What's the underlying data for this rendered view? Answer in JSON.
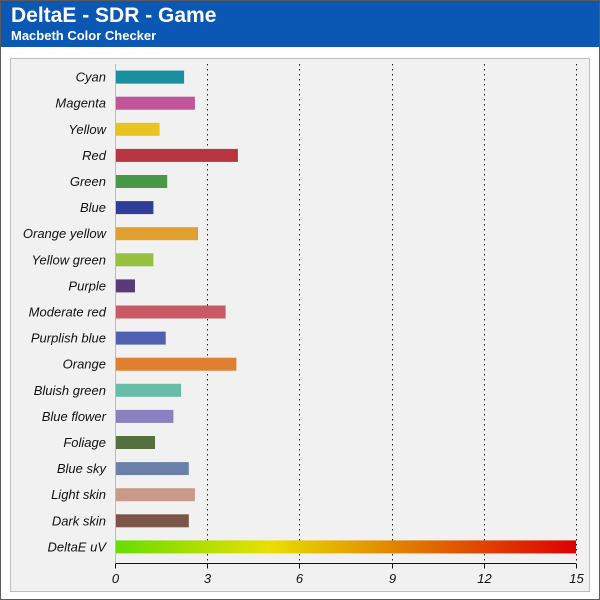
{
  "header": {
    "title": "DeltaE - SDR - Game",
    "subtitle": "Macbeth Color Checker"
  },
  "chart_data": {
    "type": "bar",
    "orientation": "horizontal",
    "title": "DeltaE - SDR - Game",
    "subtitle": "Macbeth Color Checker",
    "xlabel": "",
    "ylabel": "",
    "xlim": [
      0,
      15
    ],
    "xticks": [
      0,
      3,
      6,
      9,
      12,
      15
    ],
    "grid": "vertical-dotted",
    "categories": [
      "Cyan",
      "Magenta",
      "Yellow",
      "Red",
      "Green",
      "Blue",
      "Orange yellow",
      "Yellow green",
      "Purple",
      "Moderate red",
      "Purplish blue",
      "Orange",
      "Bluish green",
      "Blue flower",
      "Foliage",
      "Blue sky",
      "Light skin",
      "Dark skin",
      "DeltaE uV"
    ],
    "values": [
      2.25,
      2.6,
      1.45,
      4.0,
      1.7,
      1.25,
      2.7,
      1.25,
      0.65,
      3.6,
      1.65,
      3.95,
      2.15,
      1.9,
      1.3,
      2.4,
      2.6,
      2.4,
      15
    ],
    "colors": [
      "#1a8fa0",
      "#c0559a",
      "#e8c420",
      "#b83540",
      "#489848",
      "#2e3d98",
      "#e0a030",
      "#98c040",
      "#5a3a78",
      "#c85a66",
      "#5060b0",
      "#de8030",
      "#68bca8",
      "#8a82c0",
      "#55703f",
      "#6a80a8",
      "#c89a88",
      "#7a5548",
      "gradient"
    ],
    "gradient_stops": [
      "#66dd00",
      "#e8e000",
      "#e07000",
      "#dd0000"
    ]
  }
}
